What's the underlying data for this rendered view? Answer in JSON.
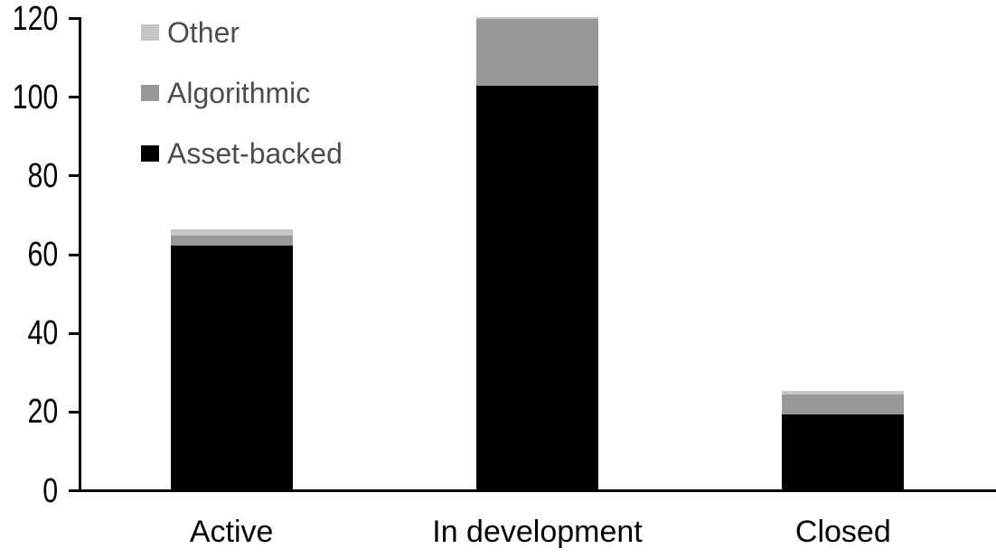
{
  "chart_data": {
    "type": "bar",
    "stacked": true,
    "title": "",
    "xlabel": "",
    "ylabel": "",
    "categories": [
      "Active",
      "In development",
      "Closed"
    ],
    "series": [
      {
        "name": "Asset-backed",
        "color": "#000000",
        "values": [
          62,
          102.5,
          19
        ]
      },
      {
        "name": "Algorithmic",
        "color": "#989898",
        "values": [
          2.5,
          17,
          5
        ]
      },
      {
        "name": "Other",
        "color": "#c5c5c5",
        "values": [
          1.5,
          0.5,
          1
        ]
      }
    ],
    "stack_totals": [
      66,
      120,
      25
    ],
    "ylim": [
      0,
      120
    ],
    "yticks": [
      0,
      20,
      40,
      60,
      80,
      100,
      120
    ],
    "grid": false,
    "legend_position": "top-left",
    "legend_order_top_to_bottom": [
      "Other",
      "Algorithmic",
      "Asset-backed"
    ],
    "axis_color": "#000000",
    "tick_label_color": "#000000",
    "category_label_color": "#000000",
    "legend_text_color": "#4d4d4d",
    "background_color": "#ffffff"
  }
}
